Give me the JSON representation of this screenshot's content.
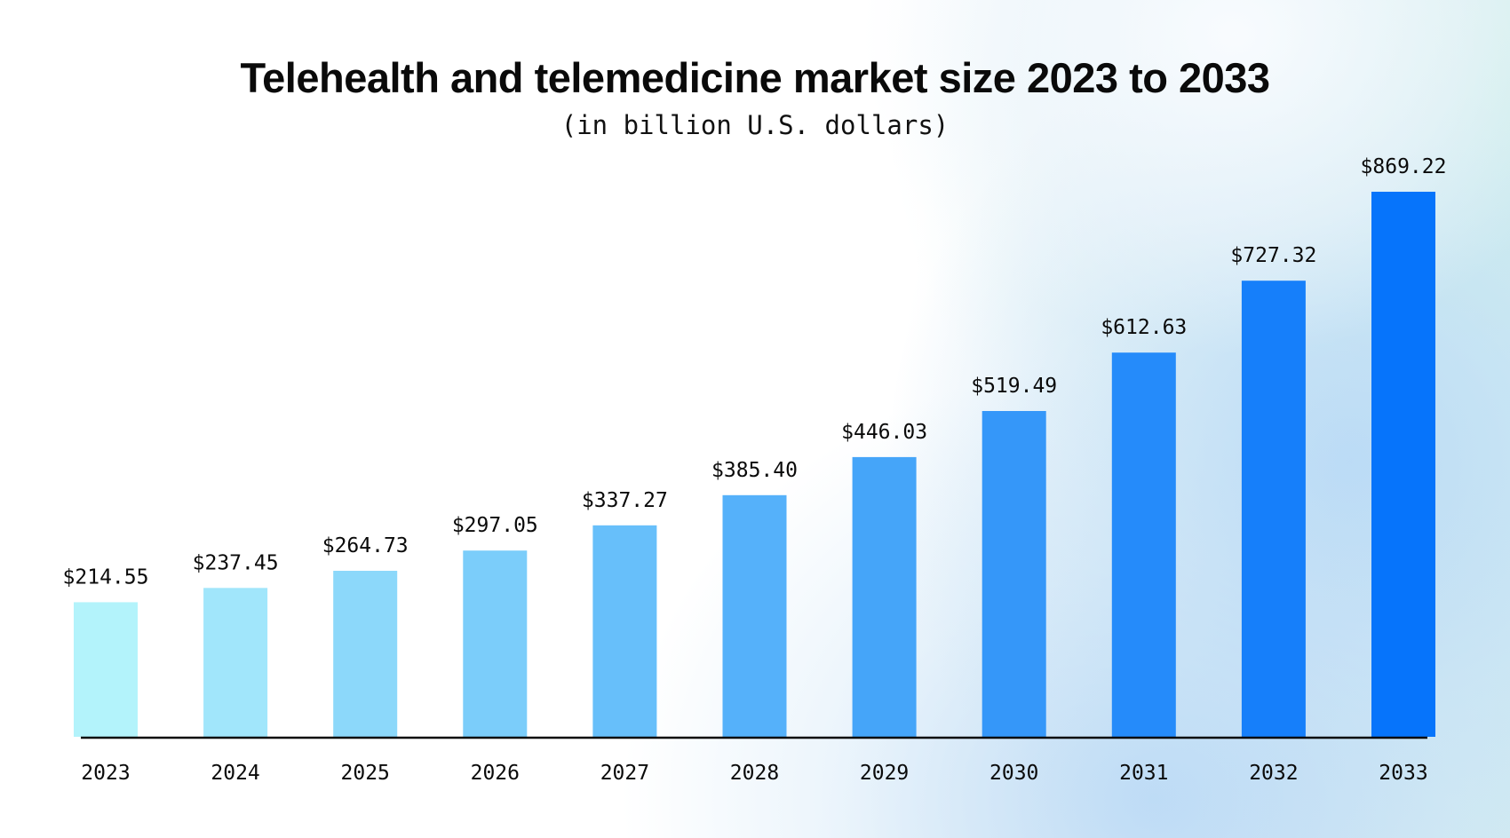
{
  "chart_data": {
    "type": "bar",
    "title": "Telehealth and telemedicine market size 2023 to 2033",
    "subtitle": "(in billion U.S. dollars)",
    "xlabel": "",
    "ylabel": "",
    "ylim": [
      0,
      900
    ],
    "grid": false,
    "legend": "none",
    "categories": [
      "2023",
      "2024",
      "2025",
      "2026",
      "2027",
      "2028",
      "2029",
      "2030",
      "2031",
      "2032",
      "2033"
    ],
    "values": [
      214.55,
      237.45,
      264.73,
      297.05,
      337.27,
      385.4,
      446.03,
      519.49,
      612.63,
      727.32,
      869.22
    ],
    "data_labels": [
      "$214.55",
      "$237.45",
      "$264.73",
      "$297.05",
      "$337.27",
      "$385.40",
      "$446.03",
      "$519.49",
      "$612.63",
      "$727.32",
      "$869.22"
    ],
    "bar_colors": [
      "#b3f3fb",
      "#a1e6fb",
      "#8cd8fa",
      "#7bcdfa",
      "#67bffa",
      "#55b1fa",
      "#45a5f9",
      "#3597f9",
      "#258bfa",
      "#167ffa",
      "#0674fb"
    ],
    "axis_color": "#0a0a0a"
  }
}
